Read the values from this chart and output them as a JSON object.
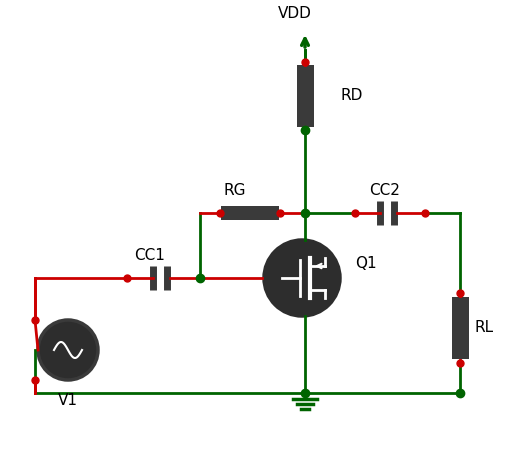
{
  "bg_color": "#ffffff",
  "wire_color": "#006400",
  "component_color": "#3a3a3a",
  "node_color": "#006400",
  "red_wire_color": "#cc0000",
  "label_color": "#000000",
  "fig_width": 5.16,
  "fig_height": 4.51,
  "title": "",
  "components": {
    "VDD_label": "VDD",
    "RD_label": "RD",
    "RG_label": "RG",
    "CC2_label": "CC2",
    "CC1_label": "CC1",
    "Q1_label": "Q1",
    "RL_label": "RL",
    "V1_label": "V1"
  }
}
